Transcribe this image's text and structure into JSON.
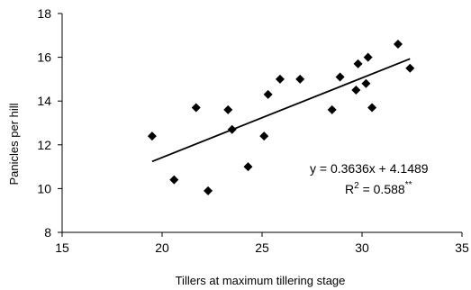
{
  "chart_data": {
    "type": "scatter",
    "title": "",
    "xlabel": "Tillers at maximum tillering stage",
    "ylabel": "Panicles per hill",
    "xlim": [
      15,
      35
    ],
    "ylim": [
      8,
      18
    ],
    "xticks": [
      "15",
      "20",
      "25",
      "30",
      "35"
    ],
    "yticks": [
      "8",
      "10",
      "12",
      "14",
      "16",
      "18"
    ],
    "grid": false,
    "marker": "diamond",
    "points": [
      {
        "x": 19.5,
        "y": 12.4
      },
      {
        "x": 20.6,
        "y": 10.4
      },
      {
        "x": 21.7,
        "y": 13.7
      },
      {
        "x": 22.3,
        "y": 9.9
      },
      {
        "x": 23.3,
        "y": 13.6
      },
      {
        "x": 23.5,
        "y": 12.7
      },
      {
        "x": 24.3,
        "y": 11.0
      },
      {
        "x": 25.1,
        "y": 12.4
      },
      {
        "x": 25.3,
        "y": 14.3
      },
      {
        "x": 25.9,
        "y": 15.0
      },
      {
        "x": 26.9,
        "y": 15.0
      },
      {
        "x": 28.5,
        "y": 13.6
      },
      {
        "x": 28.9,
        "y": 15.1
      },
      {
        "x": 29.7,
        "y": 14.5
      },
      {
        "x": 29.8,
        "y": 15.7
      },
      {
        "x": 30.2,
        "y": 14.8
      },
      {
        "x": 30.3,
        "y": 16.0
      },
      {
        "x": 30.5,
        "y": 13.7
      },
      {
        "x": 31.8,
        "y": 16.6
      },
      {
        "x": 32.4,
        "y": 15.5
      }
    ],
    "trendline": {
      "slope": 0.3636,
      "intercept": 4.1489,
      "x_range": [
        19.5,
        32.4
      ],
      "equation_label": "y = 0.3636x + 4.1489",
      "r2_prefix": "R",
      "r2_sup": "2",
      "r2_value": " = 0.588",
      "r2_stars": "**"
    }
  }
}
